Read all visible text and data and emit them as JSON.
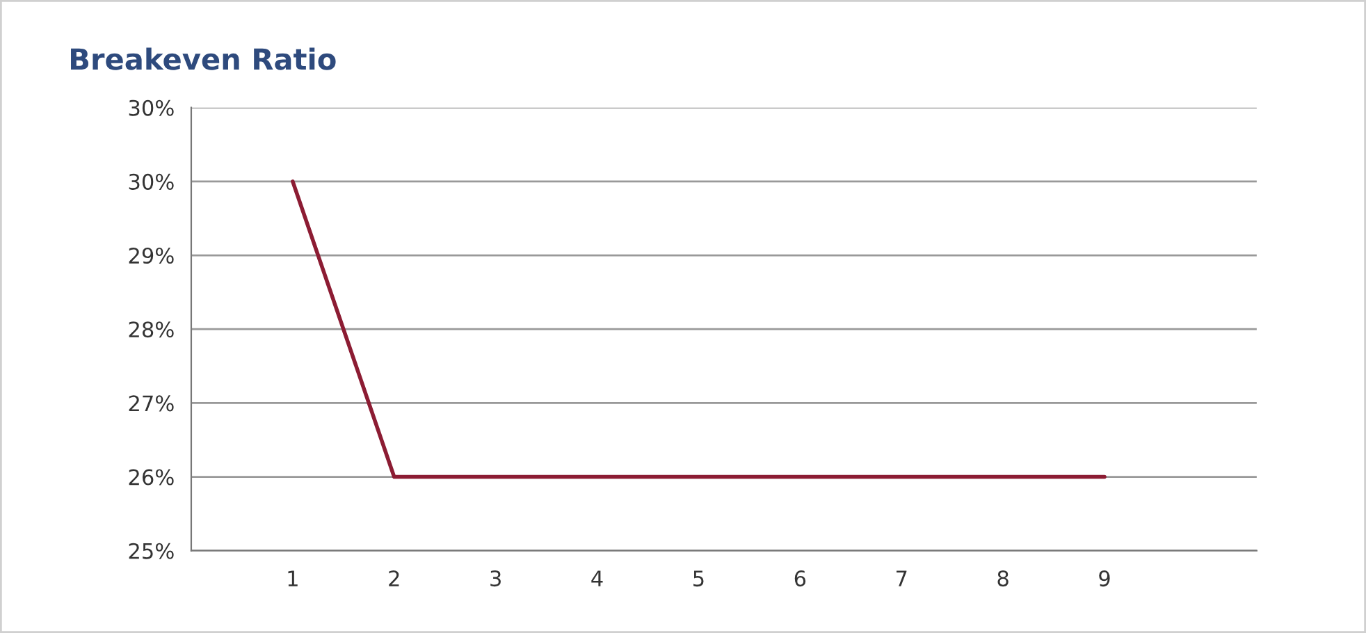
{
  "chart_data": {
    "type": "line",
    "title": "Breakeven Ratio",
    "categories": [
      "1",
      "2",
      "3",
      "4",
      "5",
      "6",
      "7",
      "8",
      "9",
      null
    ],
    "series": [
      {
        "color": "#8c1c33",
        "values": [
          29.5,
          25.9,
          25.9,
          25.9,
          25.9,
          25.9,
          25.9,
          25.9,
          25.9,
          null
        ]
      }
    ],
    "ylim": [
      25,
      30.4
    ],
    "yticks": [
      {
        "value": 25,
        "label": "25%"
      },
      {
        "value": 25.9,
        "label": "26%"
      },
      {
        "value": 26.8,
        "label": "27%"
      },
      {
        "value": 27.7,
        "label": "28%"
      },
      {
        "value": 28.6,
        "label": "29%"
      },
      {
        "value": 29.5,
        "label": "30%"
      },
      {
        "value": 30.4,
        "label": "30%"
      }
    ],
    "grid": "y",
    "legend": false,
    "marker": "none",
    "line_style": "solid"
  }
}
